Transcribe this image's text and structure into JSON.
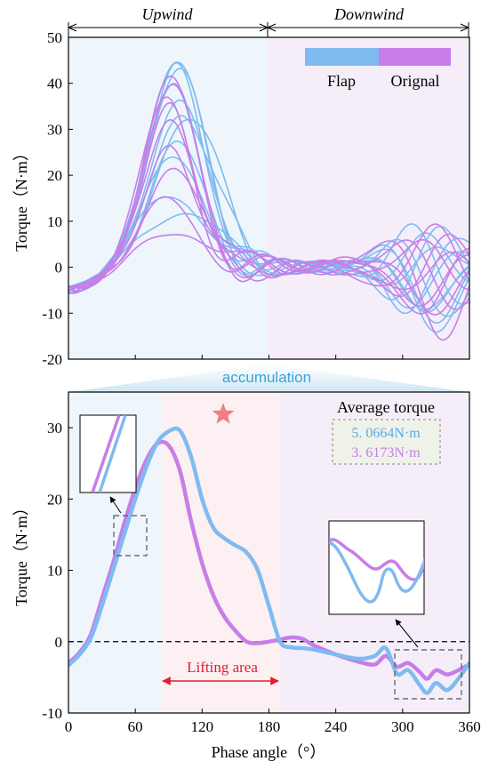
{
  "header": {
    "upwind_label": "Upwind",
    "downwind_label": "Downwind"
  },
  "chart_data": [
    {
      "type": "line",
      "ylabel": "Torque（N·m）",
      "xlim": [
        0,
        360
      ],
      "ylim": [
        -20,
        50
      ],
      "yticks": [
        "-20",
        "-10",
        "0",
        "10",
        "20",
        "30",
        "40",
        "50"
      ],
      "grid": false,
      "legend_position": "top-right",
      "series": [
        {
          "name": "Flap",
          "color": "#7fbbf0"
        },
        {
          "name": "Orignal",
          "color": "#c77ee8"
        }
      ]
    },
    {
      "type": "line",
      "xlabel": "Phase angle（°）",
      "ylabel": "Torque（N·m）",
      "xlim": [
        0,
        360
      ],
      "ylim": [
        -10,
        35
      ],
      "xticks": [
        "0",
        "60",
        "120",
        "180",
        "240",
        "300",
        "360"
      ],
      "yticks": [
        "-10",
        "0",
        "10",
        "20",
        "30"
      ],
      "title": "accumulation",
      "average_torque_title": "Average torque",
      "average_flap": "5. 0664N·m",
      "average_orignal": "3. 6173N·m",
      "lifting_area_label": "Lifting area",
      "lifting_area_range": [
        84,
        188
      ],
      "series": [
        {
          "name": "Flap",
          "color": "#7fbbf0",
          "x": [
            0,
            10,
            20,
            30,
            40,
            50,
            60,
            70,
            80,
            90,
            100,
            110,
            120,
            130,
            140,
            150,
            160,
            170,
            180,
            190,
            200,
            210,
            220,
            240,
            260,
            275,
            285,
            295,
            305,
            315,
            322,
            330,
            340,
            350,
            360
          ],
          "y": [
            -3.3,
            -1.8,
            0.5,
            5,
            10,
            15,
            20,
            24.5,
            28,
            29.5,
            29.6,
            26,
            20,
            16,
            14.5,
            13.5,
            12.5,
            10,
            5,
            0,
            -0.8,
            -0.9,
            -1.1,
            -1.8,
            -2.4,
            -2.0,
            -0.9,
            -4.5,
            -4.0,
            -6.0,
            -7.2,
            -5.8,
            -6.8,
            -5.2,
            -3.0
          ]
        },
        {
          "name": "Orignal",
          "color": "#c77ee8",
          "x": [
            0,
            10,
            20,
            30,
            40,
            50,
            60,
            70,
            80,
            90,
            100,
            110,
            120,
            130,
            140,
            150,
            160,
            170,
            180,
            190,
            200,
            210,
            220,
            240,
            260,
            275,
            285,
            295,
            305,
            315,
            322,
            330,
            340,
            350,
            360
          ],
          "y": [
            -3.0,
            -1.5,
            1.0,
            6,
            11,
            16.5,
            21.5,
            25.5,
            27.8,
            27.5,
            24,
            17,
            11,
            6.5,
            3.5,
            1.5,
            0,
            -0.2,
            0,
            0.3,
            0.6,
            0.4,
            -0.5,
            -1.8,
            -2.8,
            -3.2,
            -2.0,
            -3.5,
            -3.0,
            -4.2,
            -5.2,
            -4.0,
            -4.6,
            -4.0,
            -3.2
          ]
        }
      ],
      "insets": [
        {
          "name": "rising-zoom"
        },
        {
          "name": "downwind-zoom"
        }
      ]
    }
  ]
}
